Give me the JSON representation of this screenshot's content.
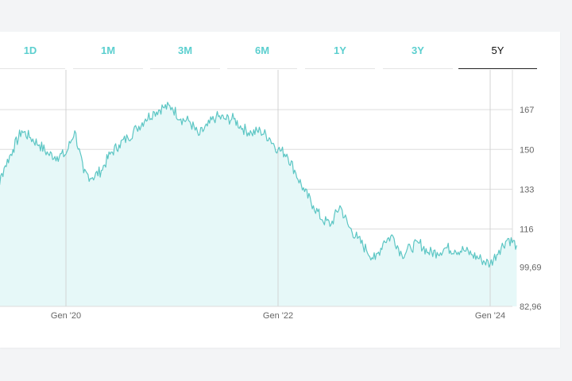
{
  "tabs": [
    {
      "label": "1D",
      "active": false
    },
    {
      "label": "1M",
      "active": false
    },
    {
      "label": "3M",
      "active": false
    },
    {
      "label": "6M",
      "active": false
    },
    {
      "label": "1Y",
      "active": false
    },
    {
      "label": "3Y",
      "active": false
    },
    {
      "label": "5Y",
      "active": true
    }
  ],
  "colors": {
    "accent": "#5cc8c8",
    "area_fill": "#e6f8f8",
    "line": "#5cc6c4",
    "grid": "#dddddd"
  },
  "chart_data": {
    "type": "area",
    "title": "",
    "xlabel": "",
    "ylabel": "",
    "grid": true,
    "y_axis_position": "right",
    "xlim": [
      "2019-04",
      "2024-05"
    ],
    "ylim": [
      82.96,
      184
    ],
    "y_ticks": [
      {
        "value": 82.96,
        "label": "82,96"
      },
      {
        "value": 99.69,
        "label": "99,69"
      },
      {
        "value": 116,
        "label": "116"
      },
      {
        "value": 133,
        "label": "133"
      },
      {
        "value": 150,
        "label": "150"
      },
      {
        "value": 167,
        "label": "167"
      }
    ],
    "x_ticks": [
      {
        "value": "2020-01",
        "label": "Gen '20"
      },
      {
        "value": "2022-01",
        "label": "Gen '22"
      },
      {
        "value": "2024-01",
        "label": "Gen '24"
      }
    ],
    "series": [
      {
        "x": [
          "2019-04",
          "2019-05",
          "2019-06",
          "2019-07",
          "2019-08",
          "2019-09",
          "2019-10",
          "2019-11",
          "2019-12",
          "2020-01",
          "2020-02",
          "2020-03",
          "2020-04",
          "2020-05",
          "2020-06",
          "2020-07",
          "2020-08",
          "2020-09",
          "2020-10",
          "2020-11",
          "2020-12",
          "2021-01",
          "2021-02",
          "2021-03",
          "2021-04",
          "2021-05",
          "2021-06",
          "2021-07",
          "2021-08",
          "2021-09",
          "2021-10",
          "2021-11",
          "2021-12",
          "2022-01",
          "2022-02",
          "2022-03",
          "2022-04",
          "2022-05",
          "2022-06",
          "2022-07",
          "2022-08",
          "2022-09",
          "2022-10",
          "2022-11",
          "2022-12",
          "2023-01",
          "2023-02",
          "2023-03",
          "2023-04",
          "2023-05",
          "2023-06",
          "2023-07",
          "2023-08",
          "2023-09",
          "2023-10",
          "2023-11",
          "2023-12",
          "2024-01",
          "2024-02",
          "2024-03",
          "2024-04"
        ],
        "y": [
          122,
          130,
          142,
          150,
          158,
          155,
          152,
          148,
          147,
          148,
          158,
          140,
          138,
          141,
          148,
          152,
          155,
          159,
          163,
          166,
          168,
          168,
          163,
          162,
          156,
          160,
          164,
          163,
          163,
          159,
          157,
          158,
          155,
          150,
          148,
          140,
          132,
          126,
          120,
          118,
          126,
          117,
          112,
          107,
          103,
          111,
          113,
          105,
          108,
          110,
          106,
          106,
          108,
          107,
          107,
          105,
          103,
          101,
          107,
          112,
          109
        ]
      }
    ]
  }
}
